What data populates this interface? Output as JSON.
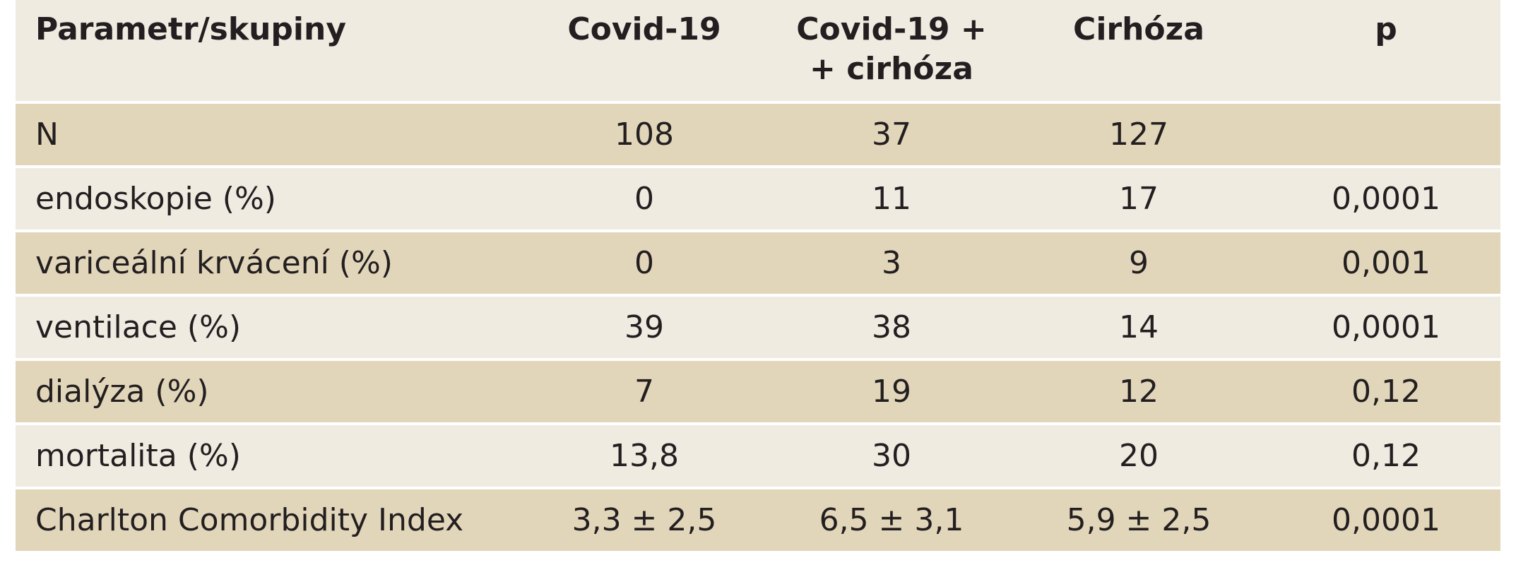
{
  "table": {
    "headers": [
      "Parametr/skupiny",
      "Covid-19",
      "Covid-19 +\n+ cirhóza",
      "Cirhóza",
      "p"
    ],
    "header_line2": "+ cirhóza",
    "header_c2_line1": "Covid-19 +",
    "rows": [
      [
        "N",
        "108",
        "37",
        "127",
        ""
      ],
      [
        "endoskopie (%)",
        "0",
        "11",
        "17",
        "0,0001"
      ],
      [
        "variceální krvácení (%)",
        "0",
        "3",
        "9",
        "0,001"
      ],
      [
        "ventilace (%)",
        "39",
        "38",
        "14",
        "0,0001"
      ],
      [
        "dialýza (%)",
        "7",
        "19",
        "12",
        "0,12"
      ],
      [
        "mortalita (%)",
        "13,8",
        "30",
        "20",
        "0,12"
      ],
      [
        "Charlton Comorbidity Index",
        "3,3 ± 2,5",
        "6,5 ± 3,1",
        "5,9 ± 2,5",
        "0,0001"
      ]
    ]
  },
  "colors": {
    "header_bg": "#f0ebe1",
    "row_dark": "#e2d6ba",
    "row_light": "#f0ebe1",
    "text": "#231f20"
  }
}
